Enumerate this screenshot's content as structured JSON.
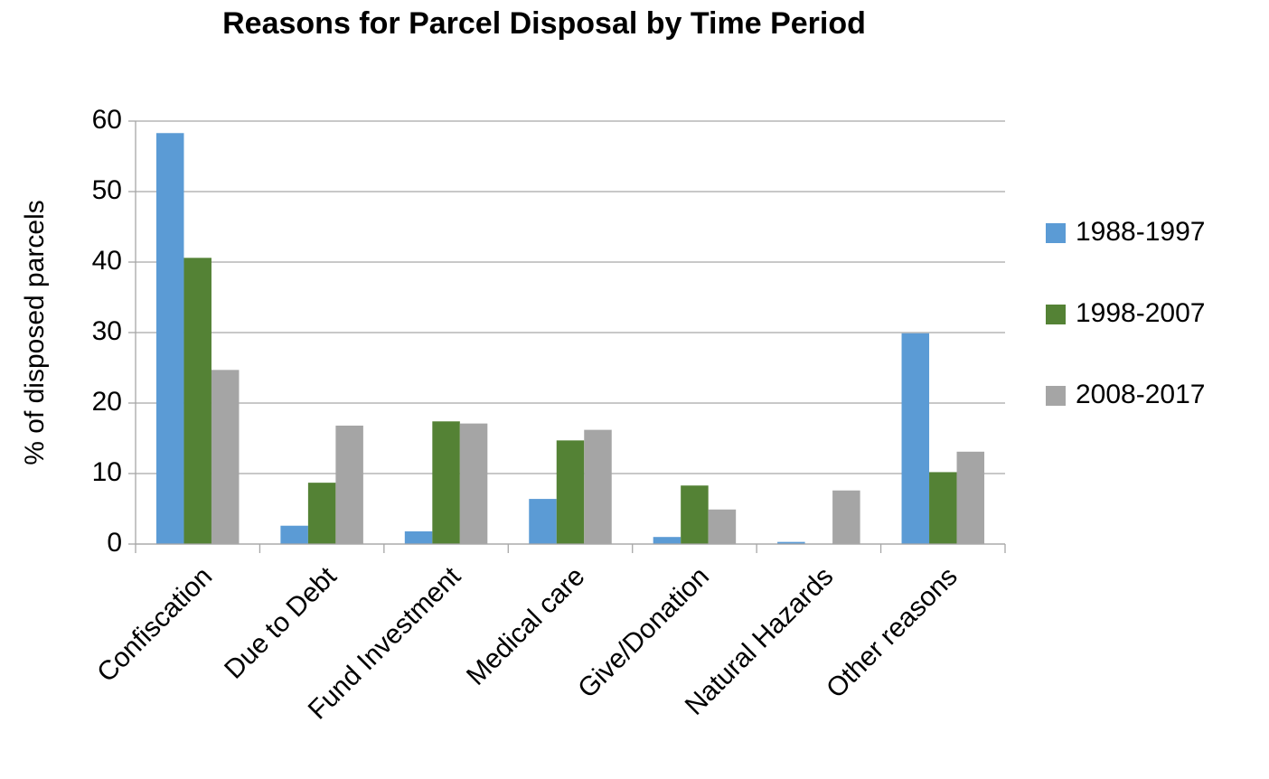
{
  "chart_data": {
    "type": "bar",
    "title": "Reasons for Parcel Disposal by Time Period",
    "ylabel": "% of disposed parcels",
    "categories": [
      "Confiscation",
      "Due to Debt",
      "Fund Investment",
      "Medical care",
      "Give/Donation",
      "Natural Hazards",
      "Other reasons"
    ],
    "series": [
      {
        "name": "1988-1997",
        "color": "#5b9bd5",
        "values": [
          58.3,
          2.6,
          1.8,
          6.4,
          1.0,
          0.3,
          29.9
        ]
      },
      {
        "name": "1998-2007",
        "color": "#548235",
        "values": [
          40.6,
          8.7,
          17.4,
          14.7,
          8.3,
          0,
          10.2
        ]
      },
      {
        "name": "2008-2017",
        "color": "#a5a5a5",
        "values": [
          24.7,
          16.8,
          17.1,
          16.2,
          4.9,
          7.6,
          13.1
        ]
      }
    ],
    "ylim": [
      0,
      60
    ],
    "yticks": [
      0,
      10,
      20,
      30,
      40,
      50,
      60
    ],
    "grid": true,
    "legend": "right"
  }
}
